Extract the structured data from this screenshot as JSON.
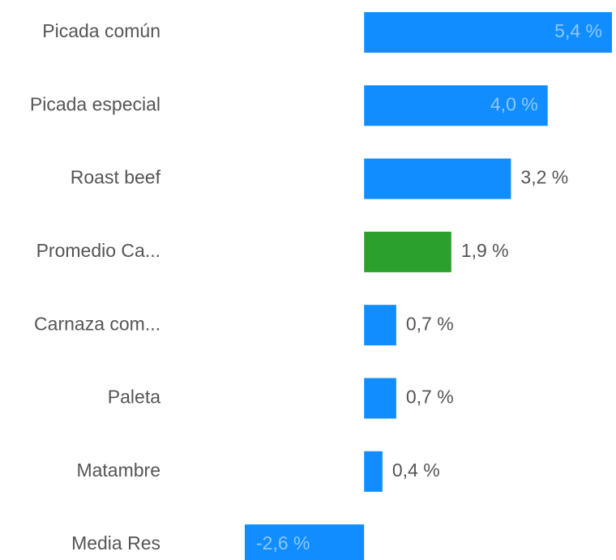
{
  "chart_data": {
    "type": "hbar",
    "categories": [
      "Picada común",
      "Picada especial",
      "Roast beef",
      "Promedio Ca...",
      "Carnaza com...",
      "Paleta",
      "Matambre",
      "Media Res"
    ],
    "values": [
      5.4,
      4.0,
      3.2,
      1.9,
      0.7,
      0.7,
      0.4,
      -2.6
    ],
    "value_labels": [
      "5,4 %",
      "4,0 %",
      "3,2 %",
      "1,9 %",
      "0,7 %",
      "0,7 %",
      "0,4 %",
      "-2,6 %"
    ],
    "colors": [
      "#118dff",
      "#118dff",
      "#118dff",
      "#2ca02c",
      "#118dff",
      "#118dff",
      "#118dff",
      "#118dff"
    ],
    "xlim": [
      -2.6,
      5.4
    ]
  }
}
